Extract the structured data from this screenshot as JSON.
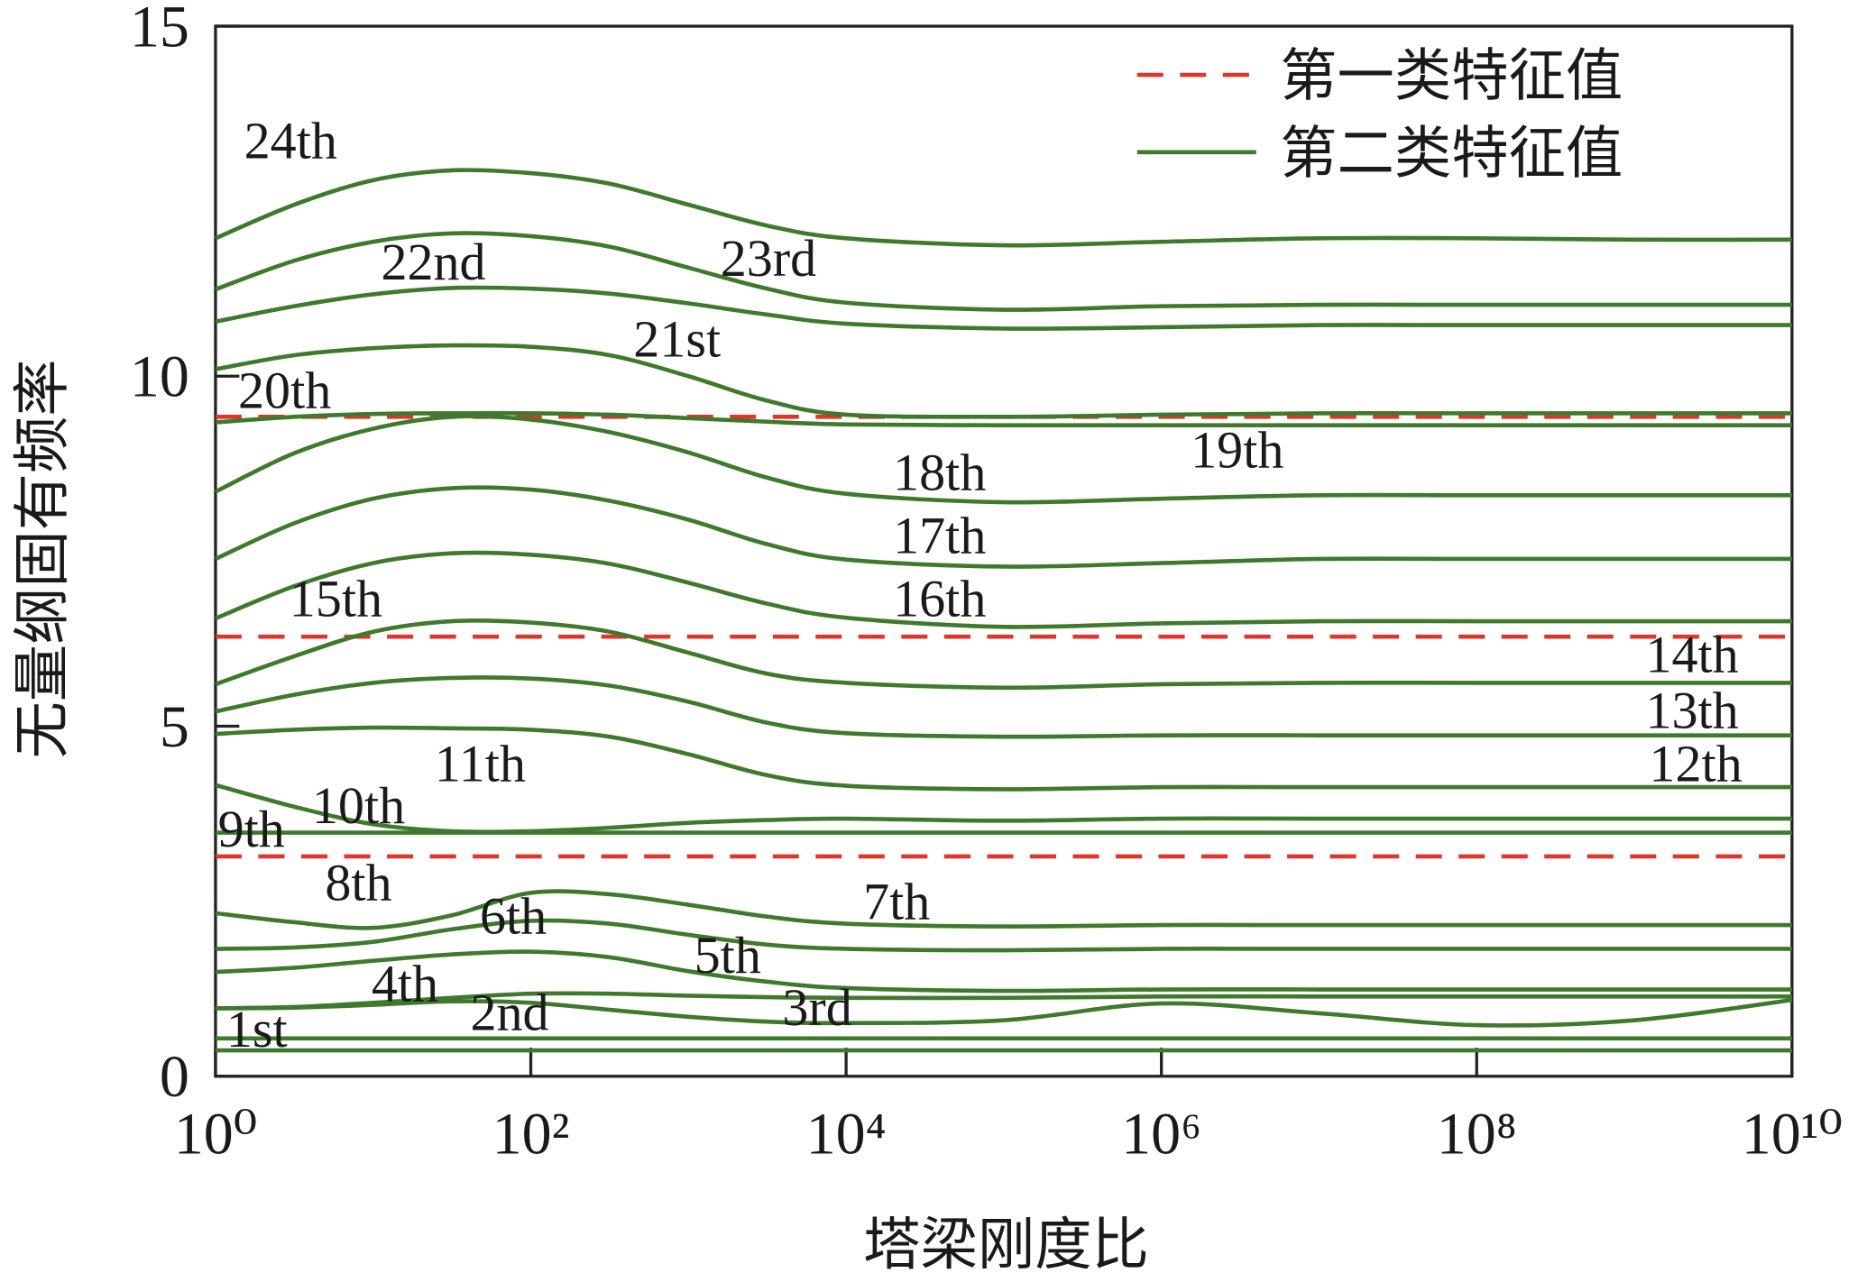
{
  "chart_data": {
    "type": "line",
    "xlabel": "塔梁刚度比",
    "ylabel": "无量纲固有频率",
    "xscale": "log",
    "xlim": [
      1,
      10000000000
    ],
    "xticks": [
      {
        "value": 1,
        "label": "10⁰"
      },
      {
        "value": 100,
        "label": "10²"
      },
      {
        "value": 10000,
        "label": "10⁴"
      },
      {
        "value": 1000000,
        "label": "10⁶"
      },
      {
        "value": 100000000,
        "label": "10⁸"
      },
      {
        "value": 10000000000,
        "label": "10¹⁰"
      }
    ],
    "ylim": [
      0,
      15
    ],
    "yticks": [
      0,
      5,
      10,
      15
    ],
    "legend_position": "upper right",
    "x": [
      1,
      3.16,
      10,
      31.6,
      100,
      316,
      1000,
      3162,
      10000,
      100000,
      1000000,
      10000000,
      100000000,
      1000000000,
      10000000000
    ],
    "series_groups": [
      {
        "name": "第一类特征值",
        "color": "#e0352b",
        "dash": true,
        "lines": [
          [
            3.14,
            3.14,
            3.14,
            3.14,
            3.14,
            3.14,
            3.14,
            3.14,
            3.14,
            3.14,
            3.14,
            3.14,
            3.14,
            3.14,
            3.14
          ],
          [
            6.28,
            6.28,
            6.28,
            6.28,
            6.28,
            6.28,
            6.28,
            6.28,
            6.28,
            6.28,
            6.28,
            6.28,
            6.28,
            6.28,
            6.28
          ],
          [
            9.42,
            9.42,
            9.42,
            9.42,
            9.42,
            9.42,
            9.42,
            9.42,
            9.42,
            9.42,
            9.42,
            9.42,
            9.42,
            9.42,
            9.42
          ]
        ]
      },
      {
        "name": "第二类特征值",
        "color": "#3f7a2c",
        "dash": false,
        "lines": [
          [
            11.97,
            12.45,
            12.8,
            12.94,
            12.9,
            12.75,
            12.45,
            12.15,
            11.97,
            11.87,
            11.92,
            11.97,
            11.97,
            11.95,
            11.95
          ],
          [
            11.24,
            11.65,
            11.92,
            12.04,
            12.0,
            11.85,
            11.55,
            11.25,
            11.05,
            10.95,
            11.0,
            11.02,
            11.02,
            11.02,
            11.02
          ],
          [
            10.78,
            11.0,
            11.17,
            11.26,
            11.25,
            11.18,
            11.04,
            10.88,
            10.75,
            10.68,
            10.7,
            10.73,
            10.73,
            10.73,
            10.73
          ],
          [
            10.1,
            10.3,
            10.4,
            10.44,
            10.42,
            10.3,
            10.0,
            9.65,
            9.45,
            9.42,
            9.45,
            9.47,
            9.47,
            9.47,
            9.47
          ],
          [
            9.34,
            9.42,
            9.46,
            9.47,
            9.47,
            9.45,
            9.4,
            9.35,
            9.31,
            9.3,
            9.3,
            9.3,
            9.3,
            9.3,
            9.3
          ],
          [
            8.35,
            8.9,
            9.25,
            9.42,
            9.38,
            9.2,
            8.91,
            8.55,
            8.32,
            8.2,
            8.25,
            8.3,
            8.3,
            8.3,
            8.3
          ],
          [
            7.39,
            7.9,
            8.25,
            8.4,
            8.38,
            8.22,
            7.95,
            7.6,
            7.38,
            7.28,
            7.33,
            7.39,
            7.39,
            7.39,
            7.39
          ],
          [
            6.54,
            7.0,
            7.33,
            7.47,
            7.45,
            7.32,
            7.05,
            6.75,
            6.55,
            6.42,
            6.47,
            6.5,
            6.5,
            6.5,
            6.5
          ],
          [
            5.6,
            6.0,
            6.35,
            6.5,
            6.48,
            6.35,
            6.05,
            5.75,
            5.62,
            5.55,
            5.6,
            5.62,
            5.62,
            5.62,
            5.62
          ],
          [
            5.21,
            5.45,
            5.62,
            5.69,
            5.68,
            5.58,
            5.35,
            5.05,
            4.9,
            4.85,
            4.87,
            4.87,
            4.87,
            4.87,
            4.87
          ],
          [
            4.89,
            4.95,
            4.98,
            4.97,
            4.95,
            4.85,
            4.6,
            4.3,
            4.15,
            4.1,
            4.13,
            4.13,
            4.13,
            4.13,
            4.13
          ],
          [
            4.16,
            3.85,
            3.6,
            3.5,
            3.5,
            3.55,
            3.62,
            3.66,
            3.68,
            3.65,
            3.68,
            3.68,
            3.68,
            3.68,
            3.68
          ],
          [
            3.48,
            3.48,
            3.48,
            3.48,
            3.48,
            3.48,
            3.48,
            3.48,
            3.48,
            3.48,
            3.48,
            3.48,
            3.48,
            3.48,
            3.48
          ],
          [
            2.33,
            2.2,
            2.12,
            2.3,
            2.62,
            2.6,
            2.45,
            2.28,
            2.18,
            2.14,
            2.16,
            2.16,
            2.16,
            2.16,
            2.16
          ],
          [
            1.82,
            1.84,
            1.92,
            2.1,
            2.22,
            2.18,
            2.02,
            1.88,
            1.82,
            1.8,
            1.82,
            1.82,
            1.82,
            1.82,
            1.82
          ],
          [
            1.49,
            1.55,
            1.65,
            1.74,
            1.78,
            1.7,
            1.5,
            1.35,
            1.26,
            1.22,
            1.24,
            1.24,
            1.24,
            1.24,
            1.24
          ],
          [
            0.97,
            0.99,
            1.05,
            1.12,
            1.18,
            1.18,
            1.15,
            1.13,
            1.12,
            1.12,
            1.14,
            1.14,
            1.14,
            1.14,
            1.14
          ],
          [
            0.97,
            0.98,
            1.02,
            1.07,
            1.05,
            0.95,
            0.85,
            0.78,
            0.76,
            0.8,
            1.04,
            0.9,
            0.73,
            0.8,
            1.09
          ],
          [
            0.54,
            0.54,
            0.54,
            0.54,
            0.54,
            0.54,
            0.54,
            0.54,
            0.54,
            0.54,
            0.54,
            0.54,
            0.54,
            0.54,
            0.54
          ],
          [
            0.37,
            0.37,
            0.37,
            0.37,
            0.37,
            0.37,
            0.37,
            0.37,
            0.37,
            0.37,
            0.37,
            0.37,
            0.37,
            0.37,
            0.37
          ]
        ]
      }
    ],
    "annotations": [
      "24th",
      "22nd",
      "23rd",
      "21st",
      "20th",
      "19th",
      "18th",
      "17th",
      "16th",
      "15th",
      "14th",
      "13th",
      "12th",
      "11th",
      "10th",
      "9th",
      "8th",
      "7th",
      "6th",
      "5th",
      "4th",
      "3rd",
      "2nd",
      "1st"
    ]
  }
}
